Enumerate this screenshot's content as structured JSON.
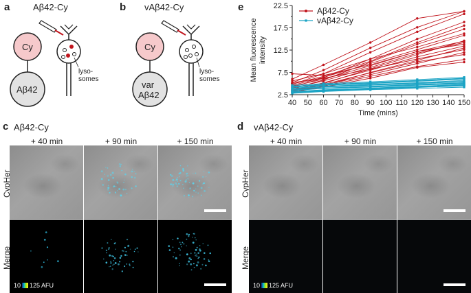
{
  "panels": {
    "a": {
      "letter": "a",
      "title": "Aβ42-Cy",
      "cy_label": "Cy",
      "protein_label": "Aβ42",
      "lysosome_label_1": "lyso-",
      "lysosome_label_2": "somes"
    },
    "b": {
      "letter": "b",
      "title": "vAβ42-Cy",
      "cy_label": "Cy",
      "protein_label_1": "var",
      "protein_label_2": "Aβ42",
      "lysosome_label_1": "lyso-",
      "lysosome_label_2": "somes"
    },
    "c": {
      "letter": "c",
      "title": "Aβ42-Cy",
      "times": [
        "+ 40 min",
        "+ 90 min",
        "+ 150 min"
      ],
      "row_labels": [
        "CypHer",
        "Merge"
      ],
      "colorbar_min": "10",
      "colorbar_max": "125 AFU"
    },
    "d": {
      "letter": "d",
      "title": "vAβ42-Cy",
      "times": [
        "+ 40 min",
        "+ 90 min",
        "+ 150 min"
      ],
      "row_labels": [
        "CypHer",
        "Merge"
      ],
      "colorbar_min": "10",
      "colorbar_max": "125 AFU"
    },
    "e": {
      "letter": "e"
    }
  },
  "colors": {
    "red_series": "#c0141c",
    "blue_series": "#1aa3c4",
    "cy_circle": "#f6c9cb",
    "protein_circle": "#e2e2e2",
    "red_dot": "#c0141c"
  },
  "chart_data": {
    "type": "line",
    "xlabel": "Time (mins)",
    "ylabel": "Mean fluorescence intensity",
    "xlim": [
      40,
      150
    ],
    "ylim": [
      2.5,
      22.5
    ],
    "xticks": [
      40,
      50,
      60,
      70,
      80,
      90,
      100,
      110,
      120,
      130,
      140,
      150
    ],
    "yticks": [
      2.5,
      7.5,
      12.5,
      17.5,
      22.5
    ],
    "yticks_minor": [
      5,
      10,
      15,
      20
    ],
    "legend_position": "top-left",
    "x": [
      40,
      60,
      90,
      120,
      150
    ],
    "series_groups": [
      {
        "name": "Aβ42-Cy",
        "color": "#c0141c",
        "marker": "circle",
        "traces": [
          [
            3.0,
            4.5,
            7.5,
            10.2,
            13.0
          ],
          [
            3.3,
            5.0,
            8.3,
            11.5,
            14.6
          ],
          [
            3.8,
            5.8,
            9.8,
            13.8,
            17.2
          ],
          [
            4.2,
            6.3,
            10.5,
            15.0,
            18.8
          ],
          [
            4.8,
            7.2,
            12.0,
            16.6,
            20.6
          ],
          [
            5.2,
            8.0,
            13.0,
            17.6,
            21.2
          ],
          [
            6.0,
            9.2,
            14.2,
            19.6,
            21.2
          ],
          [
            3.5,
            5.2,
            8.0,
            11.0,
            13.4
          ],
          [
            4.0,
            5.6,
            8.6,
            11.8,
            14.2
          ],
          [
            4.6,
            6.4,
            9.5,
            12.6,
            15.8
          ],
          [
            3.2,
            4.6,
            7.0,
            9.5,
            12.0
          ],
          [
            3.0,
            4.4,
            6.6,
            8.8,
            10.4
          ],
          [
            3.4,
            4.8,
            7.4,
            9.9,
            11.5
          ],
          [
            4.4,
            6.0,
            9.0,
            12.2,
            13.8
          ],
          [
            5.6,
            7.2,
            10.5,
            13.2,
            16.2
          ],
          [
            3.6,
            4.2,
            6.2,
            8.6,
            9.8
          ],
          [
            4.9,
            6.6,
            10.0,
            14.2,
            18.0
          ],
          [
            5.2,
            6.2,
            8.2,
            10.5,
            12.6
          ],
          [
            7.2,
            6.8,
            9.2,
            12.2,
            14.5
          ]
        ]
      },
      {
        "name": "vAβ42-Cy",
        "color": "#1aa3c4",
        "marker": "square",
        "traces": [
          [
            2.8,
            3.2,
            3.6,
            3.9,
            4.2
          ],
          [
            3.0,
            3.4,
            3.8,
            4.2,
            4.6
          ],
          [
            3.2,
            3.6,
            4.0,
            4.4,
            4.8
          ],
          [
            3.4,
            3.9,
            4.2,
            4.6,
            5.0
          ],
          [
            3.6,
            4.0,
            4.4,
            4.8,
            5.2
          ],
          [
            3.8,
            4.2,
            4.6,
            5.0,
            5.4
          ],
          [
            4.0,
            4.4,
            4.8,
            5.2,
            5.7
          ],
          [
            4.2,
            4.6,
            5.0,
            5.5,
            6.0
          ],
          [
            4.4,
            4.8,
            5.2,
            5.7,
            6.2
          ],
          [
            4.6,
            5.0,
            5.4,
            5.9,
            6.4
          ],
          [
            3.1,
            3.5,
            3.9,
            4.3,
            4.7
          ],
          [
            3.5,
            3.9,
            4.3,
            4.7,
            5.1
          ],
          [
            3.9,
            4.3,
            4.7,
            5.1,
            5.5
          ],
          [
            4.3,
            4.7,
            5.1,
            5.6,
            6.1
          ],
          [
            2.9,
            3.3,
            3.7,
            4.1,
            4.5
          ]
        ]
      }
    ]
  }
}
